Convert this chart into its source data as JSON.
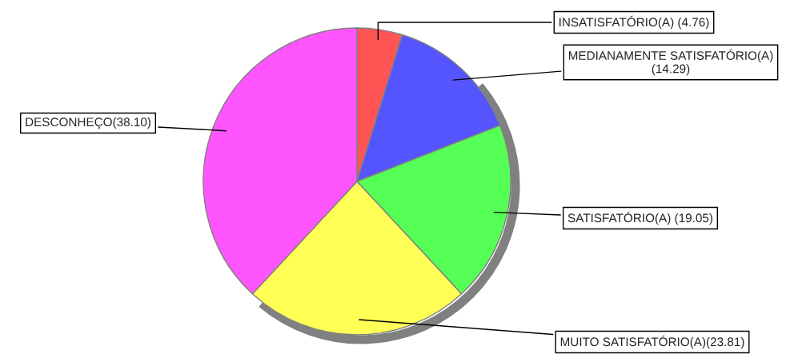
{
  "chart_data": {
    "type": "pie",
    "categories": [
      "INSATISFATÓRIO(A)",
      "MEDIANAMENTE SATISFATÓRIO(A)",
      "SATISFATÓRIO(A)",
      "MUITO SATISFATÓRIO(A)",
      "DESCONHEÇO"
    ],
    "values": [
      4.76,
      14.29,
      19.05,
      23.81,
      38.1
    ],
    "value_labels": [
      " (4.76)",
      "\n(14.29)",
      " (19.05)",
      "(23.81)",
      "(38.10)"
    ],
    "colors": [
      "#ff5555",
      "#5555ff",
      "#55ff55",
      "#ffff55",
      "#ff55ff"
    ],
    "legend": false
  }
}
